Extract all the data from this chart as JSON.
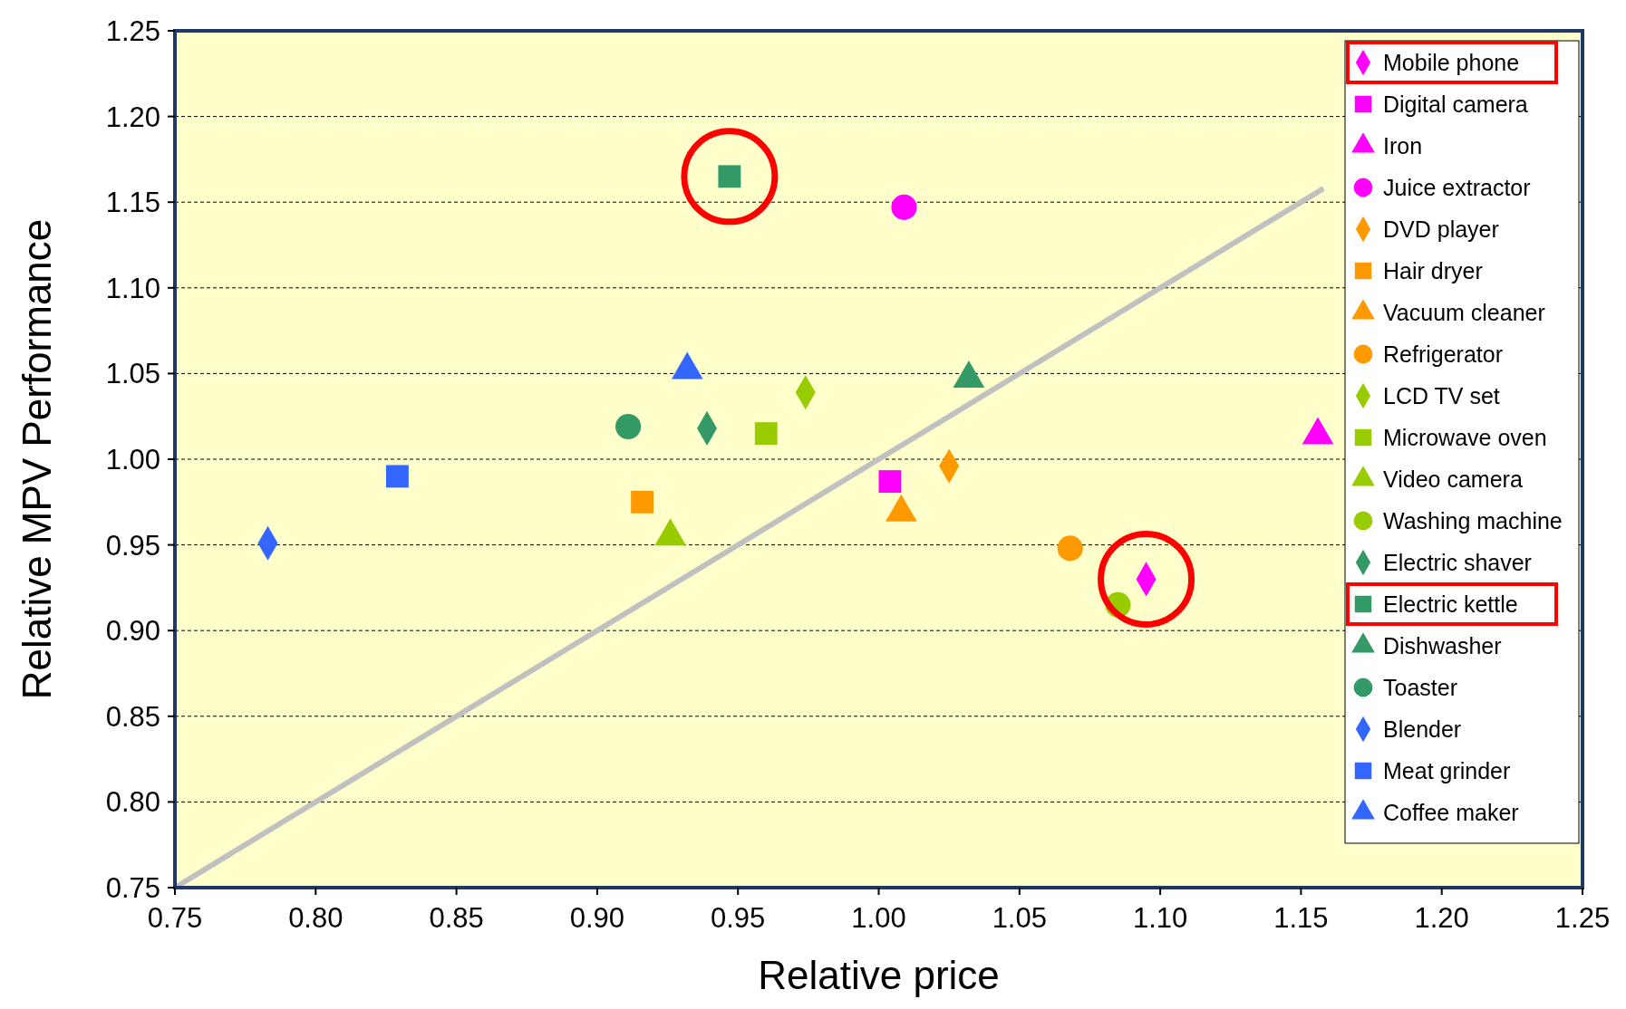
{
  "chart_data": {
    "type": "scatter",
    "xlabel": "Relative price",
    "ylabel": "Relative MPV Performance",
    "xlim": [
      0.75,
      1.25
    ],
    "ylim": [
      0.75,
      1.25
    ],
    "xticks": [
      {
        "value": 0.75,
        "label": "0.75"
      },
      {
        "value": 0.8,
        "label": "0.80"
      },
      {
        "value": 0.85,
        "label": "0.85"
      },
      {
        "value": 0.9,
        "label": "0.90"
      },
      {
        "value": 0.95,
        "label": "0.95"
      },
      {
        "value": 1.0,
        "label": "1.00"
      },
      {
        "value": 1.05,
        "label": "1.05"
      },
      {
        "value": 1.1,
        "label": "1.10"
      },
      {
        "value": 1.15,
        "label": "1.15"
      },
      {
        "value": 1.2,
        "label": "1.20"
      },
      {
        "value": 1.25,
        "label": "1.25"
      }
    ],
    "yticks": [
      {
        "value": 0.75,
        "label": "0.75"
      },
      {
        "value": 0.8,
        "label": "0.80"
      },
      {
        "value": 0.85,
        "label": "0.85"
      },
      {
        "value": 0.9,
        "label": "0.90"
      },
      {
        "value": 0.95,
        "label": "0.95"
      },
      {
        "value": 1.0,
        "label": "1.00"
      },
      {
        "value": 1.05,
        "label": "1.05"
      },
      {
        "value": 1.1,
        "label": "1.10"
      },
      {
        "value": 1.15,
        "label": "1.15"
      },
      {
        "value": 1.2,
        "label": "1.20"
      },
      {
        "value": 1.25,
        "label": "1.25"
      }
    ],
    "grid": "y",
    "legend": "top right",
    "series": [
      {
        "name": "Mobile phone",
        "color": "#ff00ff",
        "marker": "diamond",
        "x": [
          1.095
        ],
        "values": [
          0.93
        ]
      },
      {
        "name": "Digital camera",
        "color": "#ff00ff",
        "marker": "square",
        "x": [
          1.004
        ],
        "values": [
          0.987
        ]
      },
      {
        "name": "Iron",
        "color": "#ff00ff",
        "marker": "triangle",
        "x": [
          1.156
        ],
        "values": [
          1.014
        ]
      },
      {
        "name": "Juice extractor",
        "color": "#ff00ff",
        "marker": "circle",
        "x": [
          1.009
        ],
        "values": [
          1.147
        ]
      },
      {
        "name": "DVD player",
        "color": "#ff9900",
        "marker": "diamond",
        "x": [
          1.025
        ],
        "values": [
          0.996
        ]
      },
      {
        "name": "Hair dryer",
        "color": "#ff9900",
        "marker": "square",
        "x": [
          0.916
        ],
        "values": [
          0.975
        ]
      },
      {
        "name": "Vacuum cleaner",
        "color": "#ff9900",
        "marker": "triangle",
        "x": [
          1.008
        ],
        "values": [
          0.969
        ]
      },
      {
        "name": "Refrigerator",
        "color": "#ff9900",
        "marker": "circle",
        "x": [
          1.068
        ],
        "values": [
          0.948
        ]
      },
      {
        "name": "LCD TV set",
        "color": "#99cc00",
        "marker": "diamond",
        "x": [
          0.974
        ],
        "values": [
          1.039
        ]
      },
      {
        "name": "Microwave oven",
        "color": "#99cc00",
        "marker": "square",
        "x": [
          0.96
        ],
        "values": [
          1.015
        ]
      },
      {
        "name": "Video camera",
        "color": "#99cc00",
        "marker": "triangle",
        "x": [
          0.926
        ],
        "values": [
          0.955
        ]
      },
      {
        "name": "Washing machine",
        "color": "#99cc00",
        "marker": "circle",
        "x": [
          1.085
        ],
        "values": [
          0.915
        ]
      },
      {
        "name": "Electric shaver",
        "color": "#339966",
        "marker": "diamond",
        "x": [
          0.939
        ],
        "values": [
          1.018
        ]
      },
      {
        "name": "Electric kettle",
        "color": "#339966",
        "marker": "square",
        "x": [
          0.947
        ],
        "values": [
          1.165
        ]
      },
      {
        "name": "Dishwasher",
        "color": "#339966",
        "marker": "triangle",
        "x": [
          1.032
        ],
        "values": [
          1.047
        ]
      },
      {
        "name": "Toaster",
        "color": "#339966",
        "marker": "circle",
        "x": [
          0.911
        ],
        "values": [
          1.019
        ]
      },
      {
        "name": "Blender",
        "color": "#3366ff",
        "marker": "diamond",
        "x": [
          0.783
        ],
        "values": [
          0.951
        ]
      },
      {
        "name": "Meat grinder",
        "color": "#3366ff",
        "marker": "square",
        "x": [
          0.829
        ],
        "values": [
          0.99
        ]
      },
      {
        "name": "Coffee maker",
        "color": "#3366ff",
        "marker": "triangle",
        "x": [
          0.932
        ],
        "values": [
          1.052
        ]
      },
      {
        "type": "line",
        "color": "#c0c0c0",
        "x": [
          0.75,
          1.158
        ],
        "values": [
          0.75,
          1.158
        ]
      }
    ]
  }
}
